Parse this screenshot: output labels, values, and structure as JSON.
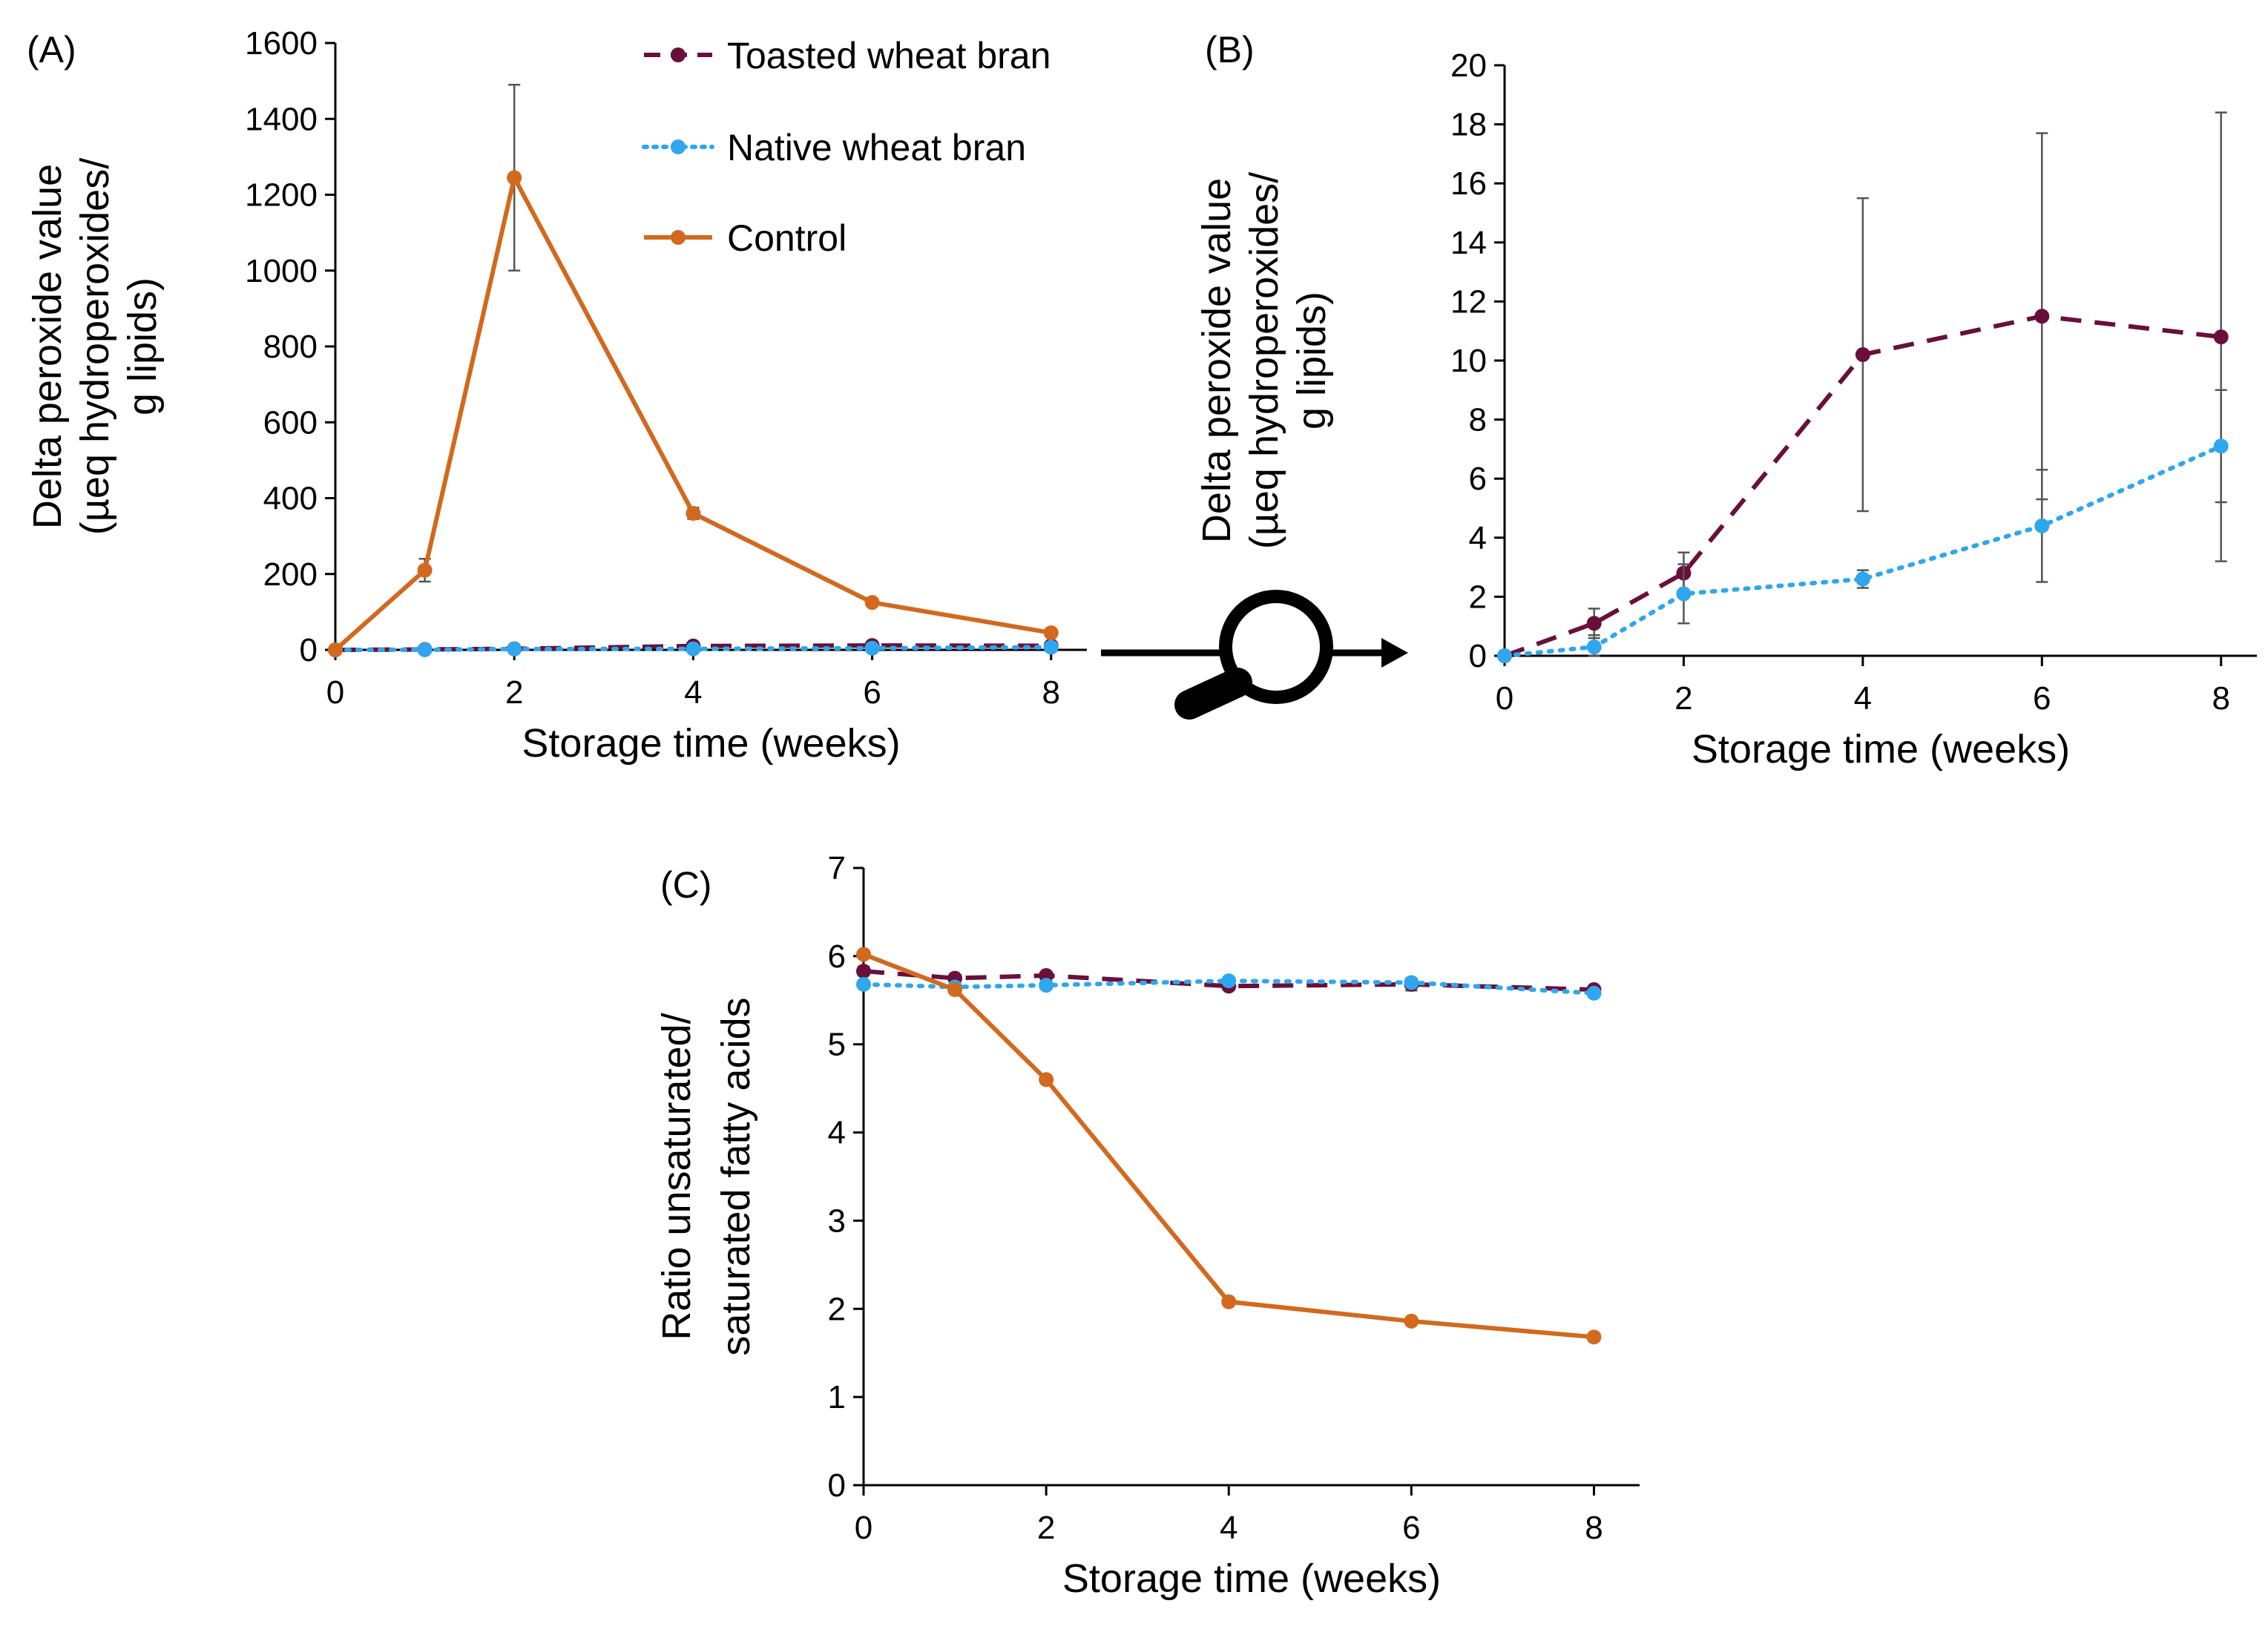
{
  "colors": {
    "toasted": "#6A0F3A",
    "native": "#2FA6EE",
    "control": "#D2691E",
    "axis": "#000000",
    "errorbar": "#555555"
  },
  "legend": {
    "entries": [
      {
        "series": "toasted",
        "label": "Toasted wheat bran",
        "style": "dashed"
      },
      {
        "series": "native",
        "label": "Native wheat bran",
        "style": "dotted"
      },
      {
        "series": "control",
        "label": "Control",
        "style": "solid"
      }
    ]
  },
  "zoom_icon": "magnifier-zoom-arrow-icon",
  "chart_data": [
    {
      "panel": "(A)",
      "type": "line",
      "xlabel": "Storage time (weeks)",
      "ylabel_lines": [
        "Delta peroxide value",
        "(µeq hydroperoxides/",
        "g lipids)"
      ],
      "x": [
        0,
        1,
        2,
        4,
        6,
        8
      ],
      "xlim": [
        0,
        8.4
      ],
      "xticks": [
        0,
        2,
        4,
        6,
        8
      ],
      "ylim": [
        0,
        1600
      ],
      "yticks": [
        0,
        200,
        400,
        600,
        800,
        1000,
        1200,
        1400,
        1600
      ],
      "grid": false,
      "legend_position": "top-right",
      "series": [
        {
          "name": "Toasted wheat bran",
          "key": "toasted",
          "values": [
            0,
            1.1,
            2.8,
            10.2,
            11.5,
            10.8
          ],
          "errors": [
            0,
            0.5,
            0.7,
            5.3,
            6.2,
            7.6
          ]
        },
        {
          "name": "Native wheat bran",
          "key": "native",
          "values": [
            0,
            0.3,
            2.1,
            2.6,
            4.4,
            7.1
          ],
          "errors": [
            0,
            0.4,
            1.0,
            0.3,
            1.9,
            1.9
          ]
        },
        {
          "name": "Control",
          "key": "control",
          "values": [
            0,
            210,
            1245,
            360,
            125,
            45
          ],
          "errors": [
            0,
            30,
            245,
            15,
            8,
            5
          ]
        }
      ]
    },
    {
      "panel": "(B)",
      "type": "line",
      "xlabel": "Storage time (weeks)",
      "ylabel_lines": [
        "Delta peroxide value",
        "(µeq hydroperoxides/",
        "g lipids)"
      ],
      "x": [
        0,
        1,
        2,
        4,
        6,
        8
      ],
      "xlim": [
        0,
        8.4
      ],
      "xticks": [
        0,
        2,
        4,
        6,
        8
      ],
      "ylim": [
        0,
        20
      ],
      "yticks": [
        0,
        2,
        4,
        6,
        8,
        10,
        12,
        14,
        16,
        18,
        20
      ],
      "grid": false,
      "series": [
        {
          "name": "Toasted wheat bran",
          "key": "toasted",
          "values": [
            0,
            1.1,
            2.8,
            10.2,
            11.5,
            10.8
          ],
          "errors": [
            0,
            0.5,
            0.7,
            5.3,
            6.2,
            7.6
          ]
        },
        {
          "name": "Native wheat bran",
          "key": "native",
          "values": [
            0,
            0.3,
            2.1,
            2.6,
            4.4,
            7.1
          ],
          "errors": [
            0,
            0.4,
            1.0,
            0.3,
            1.9,
            1.9
          ]
        }
      ]
    },
    {
      "panel": "(C)",
      "type": "line",
      "xlabel": "Storage time (weeks)",
      "ylabel_lines": [
        "Ratio unsaturated/",
        "saturated fatty acids"
      ],
      "x": [
        0,
        1,
        2,
        4,
        6,
        8
      ],
      "xlim": [
        0,
        8.5
      ],
      "xticks": [
        0,
        2,
        4,
        6,
        8
      ],
      "ylim": [
        0,
        7
      ],
      "yticks": [
        0,
        1,
        2,
        3,
        4,
        5,
        6,
        7
      ],
      "grid": false,
      "series": [
        {
          "name": "Toasted wheat bran",
          "key": "toasted",
          "values": [
            5.83,
            5.75,
            5.78,
            5.66,
            5.68,
            5.62
          ],
          "errors": [
            0.05,
            0.03,
            0.04,
            0.04,
            0.07,
            0.03
          ]
        },
        {
          "name": "Native wheat bran",
          "key": "native",
          "values": [
            5.68,
            5.65,
            5.67,
            5.72,
            5.7,
            5.58
          ],
          "errors": [
            0.03,
            0.03,
            0.03,
            0.04,
            0.04,
            0.03
          ]
        },
        {
          "name": "Control",
          "key": "control",
          "values": [
            6.02,
            5.62,
            4.6,
            2.08,
            1.86,
            1.68
          ],
          "errors": [
            0.03,
            0.03,
            0.03,
            0.03,
            0.03,
            0.02
          ]
        }
      ]
    }
  ]
}
